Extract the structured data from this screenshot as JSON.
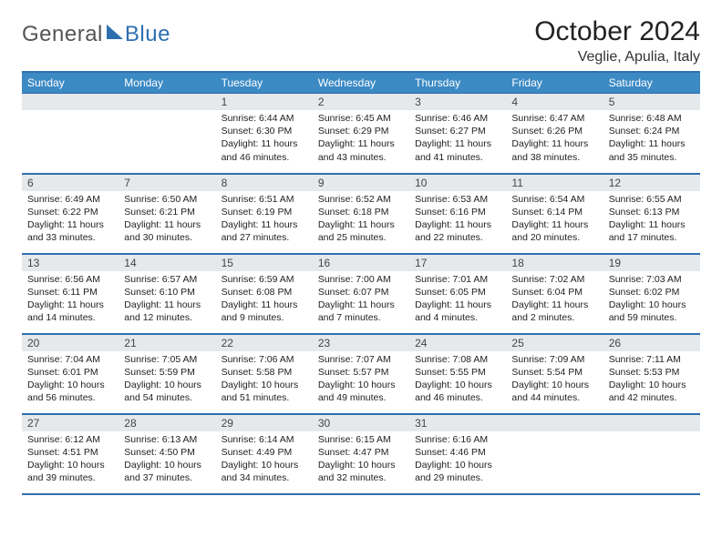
{
  "brand": {
    "text1": "General",
    "text2": "Blue"
  },
  "title": {
    "month": "October 2024",
    "location": "Veglie, Apulia, Italy"
  },
  "colors": {
    "accent": "#3b8ac4",
    "accent_border": "#2f6fb0",
    "daynum_bg": "#e6e9ec",
    "text": "#222222",
    "logo_grey": "#555555",
    "logo_blue": "#2f6fb0",
    "background": "#ffffff"
  },
  "columns": [
    "Sunday",
    "Monday",
    "Tuesday",
    "Wednesday",
    "Thursday",
    "Friday",
    "Saturday"
  ],
  "weeks": [
    [
      {
        "blank": true
      },
      {
        "blank": true
      },
      {
        "day": 1,
        "sunrise": "6:44 AM",
        "sunset": "6:30 PM",
        "daylight": "11 hours and 46 minutes."
      },
      {
        "day": 2,
        "sunrise": "6:45 AM",
        "sunset": "6:29 PM",
        "daylight": "11 hours and 43 minutes."
      },
      {
        "day": 3,
        "sunrise": "6:46 AM",
        "sunset": "6:27 PM",
        "daylight": "11 hours and 41 minutes."
      },
      {
        "day": 4,
        "sunrise": "6:47 AM",
        "sunset": "6:26 PM",
        "daylight": "11 hours and 38 minutes."
      },
      {
        "day": 5,
        "sunrise": "6:48 AM",
        "sunset": "6:24 PM",
        "daylight": "11 hours and 35 minutes."
      }
    ],
    [
      {
        "day": 6,
        "sunrise": "6:49 AM",
        "sunset": "6:22 PM",
        "daylight": "11 hours and 33 minutes."
      },
      {
        "day": 7,
        "sunrise": "6:50 AM",
        "sunset": "6:21 PM",
        "daylight": "11 hours and 30 minutes."
      },
      {
        "day": 8,
        "sunrise": "6:51 AM",
        "sunset": "6:19 PM",
        "daylight": "11 hours and 27 minutes."
      },
      {
        "day": 9,
        "sunrise": "6:52 AM",
        "sunset": "6:18 PM",
        "daylight": "11 hours and 25 minutes."
      },
      {
        "day": 10,
        "sunrise": "6:53 AM",
        "sunset": "6:16 PM",
        "daylight": "11 hours and 22 minutes."
      },
      {
        "day": 11,
        "sunrise": "6:54 AM",
        "sunset": "6:14 PM",
        "daylight": "11 hours and 20 minutes."
      },
      {
        "day": 12,
        "sunrise": "6:55 AM",
        "sunset": "6:13 PM",
        "daylight": "11 hours and 17 minutes."
      }
    ],
    [
      {
        "day": 13,
        "sunrise": "6:56 AM",
        "sunset": "6:11 PM",
        "daylight": "11 hours and 14 minutes."
      },
      {
        "day": 14,
        "sunrise": "6:57 AM",
        "sunset": "6:10 PM",
        "daylight": "11 hours and 12 minutes."
      },
      {
        "day": 15,
        "sunrise": "6:59 AM",
        "sunset": "6:08 PM",
        "daylight": "11 hours and 9 minutes."
      },
      {
        "day": 16,
        "sunrise": "7:00 AM",
        "sunset": "6:07 PM",
        "daylight": "11 hours and 7 minutes."
      },
      {
        "day": 17,
        "sunrise": "7:01 AM",
        "sunset": "6:05 PM",
        "daylight": "11 hours and 4 minutes."
      },
      {
        "day": 18,
        "sunrise": "7:02 AM",
        "sunset": "6:04 PM",
        "daylight": "11 hours and 2 minutes."
      },
      {
        "day": 19,
        "sunrise": "7:03 AM",
        "sunset": "6:02 PM",
        "daylight": "10 hours and 59 minutes."
      }
    ],
    [
      {
        "day": 20,
        "sunrise": "7:04 AM",
        "sunset": "6:01 PM",
        "daylight": "10 hours and 56 minutes."
      },
      {
        "day": 21,
        "sunrise": "7:05 AM",
        "sunset": "5:59 PM",
        "daylight": "10 hours and 54 minutes."
      },
      {
        "day": 22,
        "sunrise": "7:06 AM",
        "sunset": "5:58 PM",
        "daylight": "10 hours and 51 minutes."
      },
      {
        "day": 23,
        "sunrise": "7:07 AM",
        "sunset": "5:57 PM",
        "daylight": "10 hours and 49 minutes."
      },
      {
        "day": 24,
        "sunrise": "7:08 AM",
        "sunset": "5:55 PM",
        "daylight": "10 hours and 46 minutes."
      },
      {
        "day": 25,
        "sunrise": "7:09 AM",
        "sunset": "5:54 PM",
        "daylight": "10 hours and 44 minutes."
      },
      {
        "day": 26,
        "sunrise": "7:11 AM",
        "sunset": "5:53 PM",
        "daylight": "10 hours and 42 minutes."
      }
    ],
    [
      {
        "day": 27,
        "sunrise": "6:12 AM",
        "sunset": "4:51 PM",
        "daylight": "10 hours and 39 minutes."
      },
      {
        "day": 28,
        "sunrise": "6:13 AM",
        "sunset": "4:50 PM",
        "daylight": "10 hours and 37 minutes."
      },
      {
        "day": 29,
        "sunrise": "6:14 AM",
        "sunset": "4:49 PM",
        "daylight": "10 hours and 34 minutes."
      },
      {
        "day": 30,
        "sunrise": "6:15 AM",
        "sunset": "4:47 PM",
        "daylight": "10 hours and 32 minutes."
      },
      {
        "day": 31,
        "sunrise": "6:16 AM",
        "sunset": "4:46 PM",
        "daylight": "10 hours and 29 minutes."
      },
      {
        "blank": true
      },
      {
        "blank": true
      }
    ]
  ],
  "labels": {
    "sunrise": "Sunrise:",
    "sunset": "Sunset:",
    "daylight": "Daylight:"
  }
}
